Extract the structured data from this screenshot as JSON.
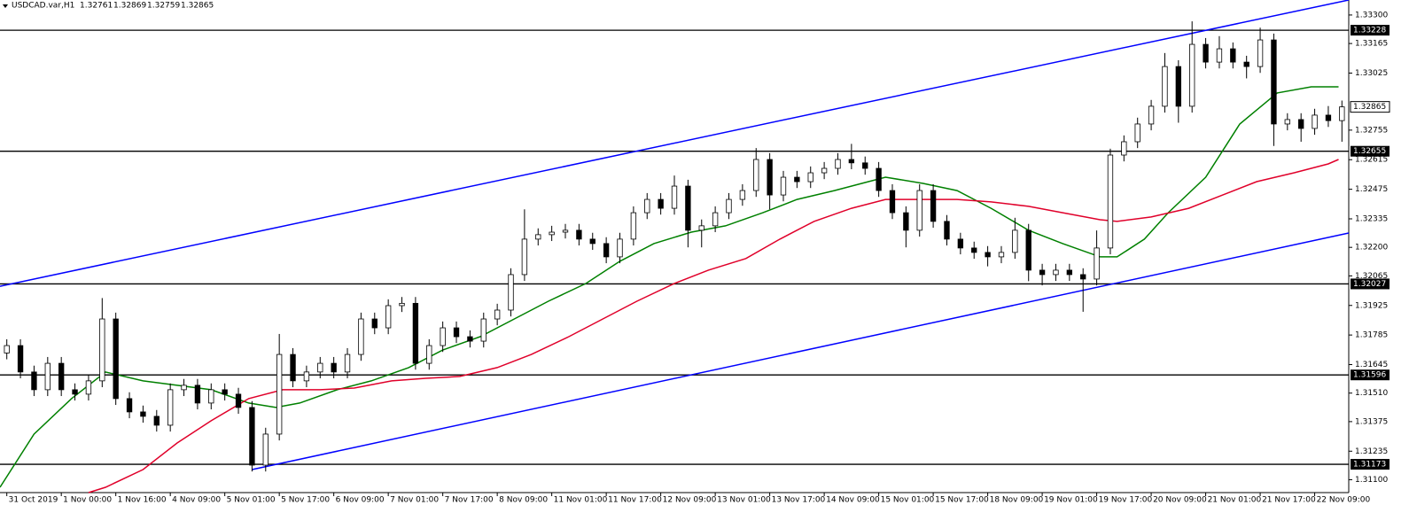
{
  "chart_data": {
    "type": "candlestick",
    "header": {
      "symbol": "USDCAD.var,H1",
      "ohlc": [
        1.32761,
        1.32869,
        1.32759,
        1.32865
      ]
    },
    "x": [
      0,
      4,
      8,
      12,
      16,
      20,
      24,
      28,
      32,
      36,
      40,
      44,
      48,
      52,
      56,
      60,
      64,
      68,
      72,
      76,
      80,
      84,
      88,
      92,
      96,
      100,
      104,
      108,
      112,
      116,
      120,
      124,
      128,
      132,
      136,
      140,
      144,
      148,
      152,
      156,
      160,
      164,
      168,
      172,
      176,
      180,
      184,
      188,
      192,
      196,
      200,
      204,
      208,
      212,
      216,
      220,
      224,
      228,
      232,
      236,
      240,
      244,
      248,
      252,
      256,
      260,
      264,
      268,
      272,
      276,
      280,
      284,
      288,
      292,
      296,
      300,
      304,
      308,
      312,
      316,
      320,
      324,
      328,
      332,
      336,
      340,
      344,
      348,
      352,
      356,
      360,
      364,
      368,
      372,
      376,
      380,
      384,
      388,
      392
    ],
    "open": [
      1.317,
      1.31735,
      1.3161,
      1.31526,
      1.31651,
      1.31526,
      1.31505,
      1.31568,
      1.31861,
      1.31484,
      1.31421,
      1.314,
      1.31358,
      1.31526,
      1.31547,
      1.31463,
      1.31526,
      1.31505,
      1.31442,
      1.31169,
      1.31316,
      1.31693,
      1.31568,
      1.3161,
      1.31651,
      1.3161,
      1.31693,
      1.31861,
      1.31819,
      1.31924,
      1.31935,
      1.31651,
      1.31735,
      1.31819,
      1.31777,
      1.31756,
      1.31861,
      1.31903,
      1.32071,
      1.32239,
      1.3226,
      1.32272,
      1.32281,
      1.32239,
      1.32218,
      1.32155,
      1.32239,
      1.32364,
      1.32427,
      1.32385,
      1.3249,
      1.32281,
      1.32302,
      1.32364,
      1.32427,
      1.32469,
      1.32616,
      1.32448,
      1.32532,
      1.32511,
      1.32553,
      1.32574,
      1.32616,
      1.326,
      1.32574,
      1.32469,
      1.32364,
      1.32281,
      1.32469,
      1.32323,
      1.32239,
      1.32197,
      1.32176,
      1.32155,
      1.32176,
      1.32281,
      1.32092,
      1.32071,
      1.32092,
      1.32071,
      1.3205,
      1.32197,
      1.32637,
      1.327,
      1.32784,
      1.32868,
      1.33056,
      1.32868,
      1.33161,
      1.33077,
      1.3314,
      1.33077,
      1.33056,
      1.33182,
      1.32784,
      1.32805,
      1.32763,
      1.32826,
      1.328
    ],
    "high": [
      1.31765,
      1.31765,
      1.3164,
      1.31681,
      1.31681,
      1.31556,
      1.31598,
      1.3196,
      1.31891,
      1.31514,
      1.31451,
      1.3143,
      1.31556,
      1.31577,
      1.31577,
      1.31556,
      1.31556,
      1.31535,
      1.31472,
      1.31346,
      1.3179,
      1.31723,
      1.3164,
      1.31681,
      1.31681,
      1.31723,
      1.31891,
      1.31891,
      1.31954,
      1.31965,
      1.31965,
      1.31765,
      1.31849,
      1.31849,
      1.31807,
      1.31891,
      1.31933,
      1.32101,
      1.3238,
      1.3229,
      1.32302,
      1.32311,
      1.32311,
      1.32269,
      1.32248,
      1.32269,
      1.32394,
      1.32457,
      1.32457,
      1.3254,
      1.3252,
      1.32332,
      1.32394,
      1.32457,
      1.32499,
      1.3267,
      1.32646,
      1.32562,
      1.32562,
      1.32583,
      1.32604,
      1.32646,
      1.3269,
      1.3263,
      1.32604,
      1.32499,
      1.32394,
      1.32499,
      1.32499,
      1.32353,
      1.32269,
      1.32227,
      1.32206,
      1.32206,
      1.3234,
      1.32311,
      1.32122,
      1.32122,
      1.32122,
      1.32101,
      1.3228,
      1.32667,
      1.3273,
      1.32814,
      1.32898,
      1.3312,
      1.33086,
      1.3327,
      1.33191,
      1.332,
      1.3317,
      1.33107,
      1.3324,
      1.33212,
      1.32835,
      1.32835,
      1.32856,
      1.32869,
      1.32895
    ],
    "low": [
      1.3167,
      1.3158,
      1.31496,
      1.31496,
      1.31496,
      1.31475,
      1.31475,
      1.31538,
      1.31454,
      1.31391,
      1.3137,
      1.31328,
      1.31328,
      1.31496,
      1.31433,
      1.31433,
      1.31475,
      1.31412,
      1.31139,
      1.31139,
      1.31286,
      1.31538,
      1.31538,
      1.3158,
      1.3158,
      1.3158,
      1.31663,
      1.31789,
      1.31789,
      1.31894,
      1.31621,
      1.31621,
      1.31705,
      1.31747,
      1.31726,
      1.31726,
      1.31831,
      1.31873,
      1.32041,
      1.32209,
      1.3223,
      1.32242,
      1.32209,
      1.32188,
      1.32125,
      1.32125,
      1.32209,
      1.32334,
      1.32355,
      1.32355,
      1.322,
      1.322,
      1.32272,
      1.32334,
      1.32397,
      1.32439,
      1.3238,
      1.32418,
      1.32481,
      1.32481,
      1.32523,
      1.32544,
      1.3257,
      1.32544,
      1.32439,
      1.32334,
      1.322,
      1.32251,
      1.32293,
      1.32209,
      1.32167,
      1.32146,
      1.3211,
      1.32125,
      1.32146,
      1.3204,
      1.3202,
      1.32041,
      1.32041,
      1.31895,
      1.3202,
      1.32167,
      1.32607,
      1.3267,
      1.32754,
      1.32838,
      1.3279,
      1.32838,
      1.33047,
      1.33047,
      1.33047,
      1.33,
      1.33026,
      1.3268,
      1.32754,
      1.327,
      1.32733,
      1.3277,
      1.327
    ],
    "close": [
      1.31735,
      1.3161,
      1.31526,
      1.31651,
      1.31526,
      1.31505,
      1.31568,
      1.31861,
      1.31484,
      1.31421,
      1.314,
      1.31358,
      1.31526,
      1.31547,
      1.31463,
      1.31526,
      1.31505,
      1.31442,
      1.31169,
      1.31316,
      1.31693,
      1.31568,
      1.3161,
      1.31651,
      1.3161,
      1.31693,
      1.31861,
      1.31819,
      1.31924,
      1.31935,
      1.31651,
      1.31735,
      1.31819,
      1.31777,
      1.31756,
      1.31861,
      1.31903,
      1.32071,
      1.32239,
      1.3226,
      1.32272,
      1.32281,
      1.32239,
      1.32218,
      1.32155,
      1.32239,
      1.32364,
      1.32427,
      1.32385,
      1.3249,
      1.32281,
      1.32302,
      1.32364,
      1.32427,
      1.32469,
      1.32616,
      1.32448,
      1.32532,
      1.32511,
      1.32553,
      1.32574,
      1.32616,
      1.326,
      1.32574,
      1.32469,
      1.32364,
      1.32281,
      1.32469,
      1.32323,
      1.32239,
      1.32197,
      1.32176,
      1.32155,
      1.32176,
      1.32281,
      1.32092,
      1.32071,
      1.32092,
      1.32071,
      1.3205,
      1.32197,
      1.32637,
      1.327,
      1.32784,
      1.32868,
      1.33056,
      1.32868,
      1.33161,
      1.33077,
      1.3314,
      1.33077,
      1.33056,
      1.33182,
      1.32784,
      1.32805,
      1.32763,
      1.32826,
      1.328,
      1.32865
    ],
    "up_color": "#ffffff",
    "down_color": "#000000",
    "candle_outline": "#000000",
    "lines": [
      {
        "color": "#008000",
        "x": [
          -2,
          8,
          19,
          29,
          40,
          50,
          60,
          71,
          79,
          86,
          97,
          107,
          118,
          128,
          139,
          149,
          159,
          170,
          180,
          190,
          201,
          211,
          222,
          232,
          243,
          253,
          258,
          269,
          279,
          289,
          300,
          310,
          321,
          326,
          334,
          341,
          352,
          362,
          373,
          383,
          391
        ],
        "values": [
          1.31064,
          1.31316,
          1.31484,
          1.3161,
          1.31568,
          1.31547,
          1.31526,
          1.31463,
          1.31442,
          1.31463,
          1.31526,
          1.31568,
          1.31631,
          1.31714,
          1.31777,
          1.31861,
          1.31945,
          1.32029,
          1.32134,
          1.32218,
          1.32272,
          1.32302,
          1.32364,
          1.32427,
          1.32469,
          1.32511,
          1.32532,
          1.32503,
          1.32469,
          1.32385,
          1.32281,
          1.32218,
          1.32155,
          1.32155,
          1.32239,
          1.32364,
          1.32532,
          1.32784,
          1.32931,
          1.3296,
          1.3296
        ]
      },
      {
        "color": "#e0002a",
        "x": [
          24,
          29,
          40,
          50,
          60,
          71,
          81,
          92,
          102,
          113,
          123,
          133,
          144,
          154,
          165,
          175,
          185,
          196,
          206,
          217,
          227,
          237,
          248,
          258,
          269,
          279,
          289,
          300,
          310,
          321,
          326,
          336,
          347,
          357,
          367,
          378,
          388,
          391
        ],
        "values": [
          1.31039,
          1.31064,
          1.31148,
          1.31274,
          1.31379,
          1.31484,
          1.31526,
          1.31526,
          1.31534,
          1.31568,
          1.3158,
          1.31589,
          1.31631,
          1.31693,
          1.31777,
          1.31861,
          1.31945,
          1.32029,
          1.32092,
          1.32147,
          1.32239,
          1.32323,
          1.32385,
          1.32427,
          1.32427,
          1.32427,
          1.32415,
          1.32394,
          1.32364,
          1.32331,
          1.32323,
          1.32344,
          1.32385,
          1.32448,
          1.32511,
          1.32553,
          1.32595,
          1.32616
        ]
      },
      {
        "color": "#0000ff",
        "x": [
          -2,
          394
        ],
        "values": [
          1.32016,
          1.33371
        ]
      },
      {
        "color": "#0000ff",
        "x": [
          72,
          394
        ],
        "values": [
          1.31148,
          1.32268
        ]
      }
    ],
    "levels": [
      1.33228,
      1.32655,
      1.32027,
      1.31596,
      1.31173
    ],
    "last_price": 1.32865,
    "xlim": [
      -2,
      394
    ],
    "ylim": [
      1.31039,
      1.33371
    ],
    "yticks": [
      {
        "value": 1.333,
        "label": "1.33300"
      },
      1.33165,
      1.33025,
      1.32755,
      1.32615,
      1.32475,
      1.32335,
      {
        "value": 1.322,
        "label": "1.32200"
      },
      1.32065,
      1.31925,
      1.31785,
      1.31645,
      {
        "value": 1.3151,
        "label": "1.31510"
      },
      1.31375,
      1.31235,
      {
        "value": 1.311,
        "label": "1.31100"
      }
    ],
    "xticks": [
      {
        "value": 0,
        "label": "31 Oct 2019"
      },
      {
        "value": 16,
        "label": "1 Nov 00:00"
      },
      {
        "value": 32,
        "label": "1 Nov 16:00"
      },
      {
        "value": 48,
        "label": "4 Nov 09:00"
      },
      {
        "value": 64,
        "label": "5 Nov 01:00"
      },
      {
        "value": 80,
        "label": "5 Nov 17:00"
      },
      {
        "value": 96,
        "label": "6 Nov 09:00"
      },
      {
        "value": 112,
        "label": "7 Nov 01:00"
      },
      {
        "value": 128,
        "label": "7 Nov 17:00"
      },
      {
        "value": 144,
        "label": "8 Nov 09:00"
      },
      {
        "value": 160,
        "label": "11 Nov 01:00"
      },
      {
        "value": 176,
        "label": "11 Nov 17:00"
      },
      {
        "value": 192,
        "label": "12 Nov 09:00"
      },
      {
        "value": 208,
        "label": "13 Nov 01:00"
      },
      {
        "value": 224,
        "label": "13 Nov 17:00"
      },
      {
        "value": 240,
        "label": "14 Nov 09:00"
      },
      {
        "value": 256,
        "label": "15 Nov 01:00"
      },
      {
        "value": 272,
        "label": "15 Nov 17:00"
      },
      {
        "value": 288,
        "label": "18 Nov 09:00"
      },
      {
        "value": 304,
        "label": "19 Nov 01:00"
      },
      {
        "value": 320,
        "label": "19 Nov 17:00"
      },
      {
        "value": 336,
        "label": "20 Nov 09:00"
      },
      {
        "value": 352,
        "label": "21 Nov 01:00"
      },
      {
        "value": 368,
        "label": "21 Nov 17:00"
      },
      {
        "value": 384,
        "label": "22 Nov 09:00"
      }
    ]
  }
}
